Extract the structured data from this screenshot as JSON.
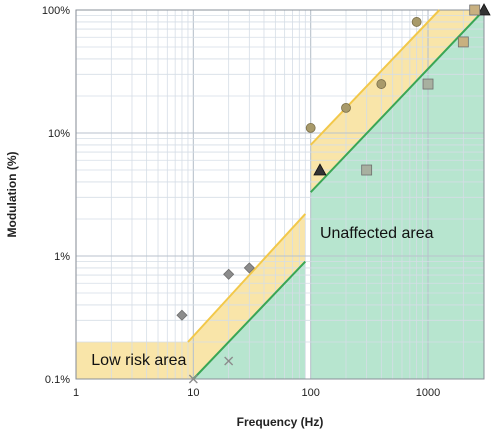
{
  "chart_data": {
    "type": "scatter",
    "xscale": "log",
    "yscale": "log",
    "xlabel": "Frequency (Hz)",
    "ylabel": "Modulation (%)",
    "xlim": [
      1,
      3000
    ],
    "ylim": [
      0.1,
      100
    ],
    "x_ticks": [
      {
        "value": 1,
        "label": "1"
      },
      {
        "value": 10,
        "label": "10"
      },
      {
        "value": 100,
        "label": "100"
      },
      {
        "value": 1000,
        "label": "1000"
      }
    ],
    "y_ticks": [
      {
        "value": 0.1,
        "label": "0.1%"
      },
      {
        "value": 1,
        "label": "1%"
      },
      {
        "value": 10,
        "label": "10%"
      },
      {
        "value": 100,
        "label": "100%"
      }
    ],
    "grid": true,
    "regions": [
      {
        "label": "Low risk area",
        "color": "#f7dc8c",
        "polygon": [
          [
            1,
            0.1
          ],
          [
            1,
            0.2
          ],
          [
            9,
            0.2
          ],
          [
            90,
            2.2
          ],
          [
            90,
            0.9
          ],
          [
            10,
            0.1
          ]
        ],
        "polygon_2": [
          [
            100,
            3.3
          ],
          [
            100,
            8
          ],
          [
            1250,
            100
          ],
          [
            2900,
            100
          ],
          [
            1250,
            42
          ]
        ],
        "label_at": [
          1.35,
          0.13
        ]
      },
      {
        "label": "Unaffected area",
        "color": "#9fdcbf",
        "polygon": [
          [
            10,
            0.1
          ],
          [
            90,
            0.9
          ],
          [
            90,
            0.1
          ]
        ],
        "polygon_2": [
          [
            100,
            0.1
          ],
          [
            100,
            3.3
          ],
          [
            3000,
            100
          ],
          [
            3000,
            0.1
          ]
        ],
        "label_at": [
          120,
          1.4
        ]
      }
    ],
    "boundary_lines": [
      {
        "color": "#3aa655",
        "points": [
          [
            10,
            0.1
          ],
          [
            90,
            0.9
          ]
        ]
      },
      {
        "color": "#3aa655",
        "points": [
          [
            100,
            3.3
          ],
          [
            3000,
            100
          ]
        ]
      },
      {
        "color": "#f2c84a",
        "points": [
          [
            9,
            0.2
          ],
          [
            90,
            2.2
          ]
        ]
      },
      {
        "color": "#f2c84a",
        "points": [
          [
            100,
            8
          ],
          [
            1250,
            100
          ]
        ]
      }
    ],
    "series": [
      {
        "marker": "diamond",
        "color": "#8c8c8c",
        "points": [
          [
            8,
            0.33
          ],
          [
            20,
            0.71
          ],
          [
            30,
            0.8
          ]
        ]
      },
      {
        "marker": "x",
        "color": "#8c8c8c",
        "points": [
          [
            10,
            0.1
          ],
          [
            20,
            0.14
          ]
        ]
      },
      {
        "marker": "circle",
        "color": "#a89a6a",
        "points": [
          [
            100,
            11
          ],
          [
            200,
            16
          ],
          [
            400,
            25
          ],
          [
            800,
            80
          ]
        ]
      },
      {
        "marker": "triangle",
        "color": "#333333",
        "points": [
          [
            120,
            5
          ],
          [
            3000,
            100
          ]
        ]
      },
      {
        "marker": "square",
        "color": "#a8b0a0",
        "points": [
          [
            300,
            5
          ],
          [
            1000,
            25
          ]
        ]
      },
      {
        "marker": "square",
        "color": "#c8b080",
        "points": [
          [
            2000,
            55
          ],
          [
            2500,
            100
          ]
        ]
      }
    ]
  }
}
